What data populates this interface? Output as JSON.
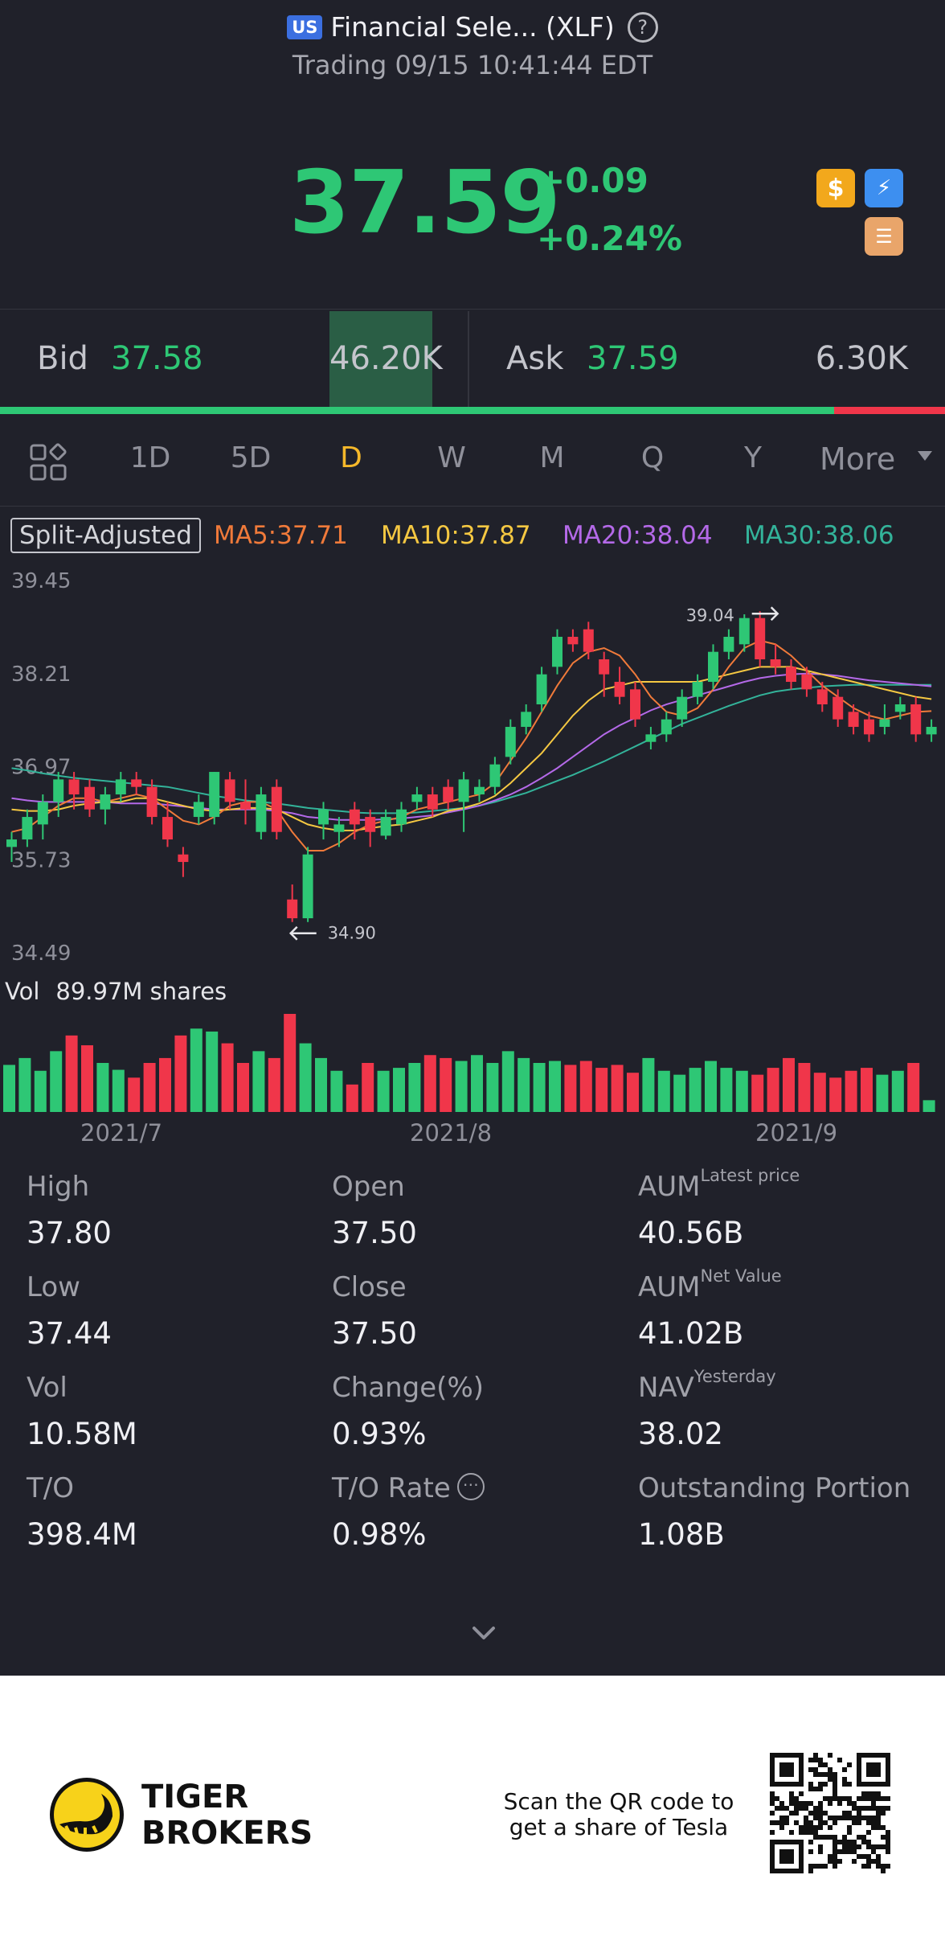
{
  "header": {
    "market_badge": "US",
    "title": "Financial Sele... (XLF)",
    "status": "Trading 09/15 10:41:44 EDT"
  },
  "quote": {
    "price": "37.59",
    "change": "+0.09",
    "change_pct": "+0.24%",
    "color": "#2ec775"
  },
  "bidask": {
    "bid_label": "Bid",
    "bid_price": "37.58",
    "bid_size": "46.20K",
    "ask_label": "Ask",
    "ask_price": "37.59",
    "ask_size": "6.30K",
    "bid_ratio": 0.883
  },
  "tabs": {
    "items": [
      "1D",
      "5D",
      "D",
      "W",
      "M",
      "Q",
      "Y"
    ],
    "active": "D",
    "more_label": "More"
  },
  "legend": {
    "split_label": "Split-Adjusted",
    "ma5": "MA5:37.71",
    "ma10": "MA10:37.87",
    "ma20": "MA20:38.04",
    "ma30": "MA30:38.06",
    "ma5_color": "#f07a3a",
    "ma10_color": "#f5c842",
    "ma20_color": "#b469e8",
    "ma30_color": "#33b39a"
  },
  "chart_data": {
    "type": "candlestick",
    "y_ticks": [
      "39.45",
      "38.21",
      "36.97",
      "35.73",
      "34.49"
    ],
    "ylim": [
      34.49,
      39.45
    ],
    "high_label": "39.04",
    "low_label": "34.90",
    "x_labels": [
      "2021/7",
      "2021/8",
      "2021/9"
    ],
    "up_color": "#2ec775",
    "down_color": "#f0364a",
    "candles": [
      {
        "o": 35.9,
        "h": 36.1,
        "c": 36.0,
        "l": 35.7
      },
      {
        "o": 36.0,
        "h": 36.4,
        "c": 36.3,
        "l": 35.9
      },
      {
        "o": 36.2,
        "h": 36.6,
        "c": 36.5,
        "l": 36.0
      },
      {
        "o": 36.5,
        "h": 36.9,
        "c": 36.8,
        "l": 36.3
      },
      {
        "o": 36.8,
        "h": 36.9,
        "c": 36.6,
        "l": 36.4
      },
      {
        "o": 36.7,
        "h": 36.8,
        "c": 36.4,
        "l": 36.3
      },
      {
        "o": 36.4,
        "h": 36.7,
        "c": 36.6,
        "l": 36.2
      },
      {
        "o": 36.6,
        "h": 36.9,
        "c": 36.8,
        "l": 36.5
      },
      {
        "o": 36.8,
        "h": 36.9,
        "c": 36.7,
        "l": 36.6
      },
      {
        "o": 36.7,
        "h": 36.8,
        "c": 36.3,
        "l": 36.2
      },
      {
        "o": 36.3,
        "h": 36.5,
        "c": 36.0,
        "l": 35.9
      },
      {
        "o": 35.8,
        "h": 35.9,
        "c": 35.7,
        "l": 35.5
      },
      {
        "o": 36.3,
        "h": 36.6,
        "c": 36.5,
        "l": 36.2
      },
      {
        "o": 36.3,
        "h": 36.9,
        "c": 36.9,
        "l": 36.2
      },
      {
        "o": 36.8,
        "h": 36.9,
        "c": 36.5,
        "l": 36.4
      },
      {
        "o": 36.5,
        "h": 36.8,
        "c": 36.4,
        "l": 36.2
      },
      {
        "o": 36.1,
        "h": 36.7,
        "c": 36.6,
        "l": 36.0
      },
      {
        "o": 36.7,
        "h": 36.8,
        "c": 36.1,
        "l": 36.0
      },
      {
        "o": 35.2,
        "h": 35.4,
        "c": 34.95,
        "l": 34.9
      },
      {
        "o": 34.95,
        "h": 35.9,
        "c": 35.8,
        "l": 34.9
      },
      {
        "o": 36.2,
        "h": 36.5,
        "c": 36.4,
        "l": 36.0
      },
      {
        "o": 36.1,
        "h": 36.3,
        "c": 36.2,
        "l": 35.9
      },
      {
        "o": 36.4,
        "h": 36.5,
        "c": 36.2,
        "l": 36.0
      },
      {
        "o": 36.3,
        "h": 36.4,
        "c": 36.1,
        "l": 35.9
      },
      {
        "o": 36.05,
        "h": 36.4,
        "c": 36.3,
        "l": 36.0
      },
      {
        "o": 36.2,
        "h": 36.5,
        "c": 36.4,
        "l": 36.1
      },
      {
        "o": 36.5,
        "h": 36.7,
        "c": 36.6,
        "l": 36.4
      },
      {
        "o": 36.6,
        "h": 36.7,
        "c": 36.4,
        "l": 36.3
      },
      {
        "o": 36.7,
        "h": 36.8,
        "c": 36.5,
        "l": 36.4
      },
      {
        "o": 36.5,
        "h": 36.9,
        "c": 36.8,
        "l": 36.1
      },
      {
        "o": 36.6,
        "h": 36.8,
        "c": 36.7,
        "l": 36.5
      },
      {
        "o": 36.7,
        "h": 37.1,
        "c": 37.0,
        "l": 36.6
      },
      {
        "o": 37.1,
        "h": 37.6,
        "c": 37.5,
        "l": 37.0
      },
      {
        "o": 37.5,
        "h": 37.8,
        "c": 37.7,
        "l": 37.4
      },
      {
        "o": 37.8,
        "h": 38.3,
        "c": 38.2,
        "l": 37.7
      },
      {
        "o": 38.3,
        "h": 38.8,
        "c": 38.7,
        "l": 38.2
      },
      {
        "o": 38.7,
        "h": 38.8,
        "c": 38.6,
        "l": 38.5
      },
      {
        "o": 38.8,
        "h": 38.9,
        "c": 38.5,
        "l": 38.4
      },
      {
        "o": 38.4,
        "h": 38.5,
        "c": 38.2,
        "l": 37.9
      },
      {
        "o": 38.1,
        "h": 38.3,
        "c": 37.9,
        "l": 37.8
      },
      {
        "o": 38.0,
        "h": 38.1,
        "c": 37.6,
        "l": 37.5
      },
      {
        "o": 37.3,
        "h": 37.5,
        "c": 37.4,
        "l": 37.2
      },
      {
        "o": 37.4,
        "h": 37.7,
        "c": 37.6,
        "l": 37.3
      },
      {
        "o": 37.6,
        "h": 38.0,
        "c": 37.9,
        "l": 37.5
      },
      {
        "o": 37.9,
        "h": 38.2,
        "c": 38.1,
        "l": 37.8
      },
      {
        "o": 38.1,
        "h": 38.6,
        "c": 38.5,
        "l": 38.0
      },
      {
        "o": 38.5,
        "h": 38.8,
        "c": 38.7,
        "l": 38.4
      },
      {
        "o": 38.6,
        "h": 39.0,
        "c": 38.95,
        "l": 38.5
      },
      {
        "o": 38.95,
        "h": 39.04,
        "c": 38.4,
        "l": 38.3
      },
      {
        "o": 38.4,
        "h": 38.6,
        "c": 38.3,
        "l": 38.2
      },
      {
        "o": 38.3,
        "h": 38.4,
        "c": 38.1,
        "l": 38.0
      },
      {
        "o": 38.2,
        "h": 38.3,
        "c": 38.0,
        "l": 37.9
      },
      {
        "o": 38.0,
        "h": 38.1,
        "c": 37.8,
        "l": 37.7
      },
      {
        "o": 37.9,
        "h": 38.0,
        "c": 37.6,
        "l": 37.5
      },
      {
        "o": 37.7,
        "h": 37.8,
        "c": 37.5,
        "l": 37.4
      },
      {
        "o": 37.6,
        "h": 37.7,
        "c": 37.4,
        "l": 37.3
      },
      {
        "o": 37.5,
        "h": 37.8,
        "c": 37.6,
        "l": 37.4
      },
      {
        "o": 37.7,
        "h": 37.9,
        "c": 37.8,
        "l": 37.6
      },
      {
        "o": 37.8,
        "h": 37.9,
        "c": 37.4,
        "l": 37.3
      },
      {
        "o": 37.4,
        "h": 37.6,
        "c": 37.5,
        "l": 37.3
      }
    ],
    "ma5": [
      36.1,
      36.15,
      36.3,
      36.45,
      36.55,
      36.55,
      36.5,
      36.55,
      36.6,
      36.55,
      36.4,
      36.25,
      36.2,
      36.3,
      36.45,
      36.5,
      36.5,
      36.4,
      36.1,
      35.85,
      35.85,
      35.95,
      36.1,
      36.2,
      36.25,
      36.3,
      36.4,
      36.45,
      36.5,
      36.55,
      36.6,
      36.75,
      37.05,
      37.35,
      37.7,
      38.05,
      38.35,
      38.5,
      38.55,
      38.45,
      38.2,
      37.9,
      37.7,
      37.65,
      37.75,
      38.0,
      38.3,
      38.55,
      38.65,
      38.6,
      38.45,
      38.25,
      38.05,
      37.9,
      37.75,
      37.65,
      37.6,
      37.65,
      37.7,
      37.71
    ],
    "ma10": [
      36.4,
      36.38,
      36.38,
      36.4,
      36.45,
      36.48,
      36.5,
      36.5,
      36.55,
      36.55,
      36.5,
      36.45,
      36.4,
      36.38,
      36.4,
      36.42,
      36.42,
      36.4,
      36.3,
      36.2,
      36.15,
      36.12,
      36.12,
      36.15,
      36.18,
      36.2,
      36.25,
      36.3,
      36.38,
      36.42,
      36.48,
      36.58,
      36.75,
      36.95,
      37.15,
      37.4,
      37.65,
      37.85,
      38.0,
      38.05,
      38.1,
      38.1,
      38.1,
      38.1,
      38.1,
      38.15,
      38.2,
      38.25,
      38.3,
      38.3,
      38.3,
      38.25,
      38.2,
      38.15,
      38.1,
      38.05,
      38.0,
      37.95,
      37.9,
      37.87
    ],
    "ma20": [
      36.55,
      36.52,
      36.5,
      36.5,
      36.5,
      36.5,
      36.5,
      36.48,
      36.48,
      36.48,
      36.46,
      36.44,
      36.42,
      36.4,
      36.4,
      36.4,
      36.4,
      36.38,
      36.35,
      36.3,
      36.28,
      36.26,
      36.26,
      36.26,
      36.27,
      36.28,
      36.3,
      36.32,
      36.36,
      36.4,
      36.45,
      36.52,
      36.6,
      36.7,
      36.82,
      36.95,
      37.1,
      37.25,
      37.4,
      37.52,
      37.62,
      37.72,
      37.8,
      37.86,
      37.92,
      37.98,
      38.04,
      38.1,
      38.15,
      38.18,
      38.2,
      38.21,
      38.2,
      38.18,
      38.15,
      38.12,
      38.1,
      38.08,
      38.06,
      38.04
    ],
    "ma30": [
      36.95,
      36.92,
      36.88,
      36.85,
      36.82,
      36.8,
      36.78,
      36.76,
      36.74,
      36.72,
      36.7,
      36.66,
      36.62,
      36.58,
      36.55,
      36.52,
      36.5,
      36.48,
      36.45,
      36.42,
      36.4,
      36.38,
      36.36,
      36.35,
      36.35,
      36.35,
      36.36,
      36.38,
      36.4,
      36.42,
      36.45,
      36.5,
      36.56,
      36.62,
      36.7,
      36.78,
      36.86,
      36.95,
      37.04,
      37.14,
      37.24,
      37.34,
      37.44,
      37.54,
      37.62,
      37.7,
      37.78,
      37.85,
      37.92,
      37.97,
      38.0,
      38.02,
      38.04,
      38.05,
      38.06,
      38.06,
      38.06,
      38.06,
      38.06,
      38.06
    ],
    "volume_label": "Vol",
    "volume_value": "89.97M shares",
    "volumes": [
      0.48,
      0.55,
      0.42,
      0.62,
      0.78,
      0.68,
      0.5,
      0.43,
      0.35,
      0.5,
      0.55,
      0.78,
      0.85,
      0.82,
      0.7,
      0.5,
      0.62,
      0.55,
      1.0,
      0.7,
      0.55,
      0.42,
      0.28,
      0.5,
      0.42,
      0.45,
      0.5,
      0.58,
      0.55,
      0.52,
      0.58,
      0.5,
      0.62,
      0.55,
      0.5,
      0.52,
      0.48,
      0.52,
      0.45,
      0.48,
      0.4,
      0.55,
      0.42,
      0.38,
      0.45,
      0.52,
      0.45,
      0.42,
      0.38,
      0.45,
      0.55,
      0.5,
      0.4,
      0.35,
      0.42,
      0.45,
      0.38,
      0.42,
      0.5,
      0.12
    ]
  },
  "stats": {
    "high_label": "High",
    "high": "37.80",
    "open_label": "Open",
    "open": "37.50",
    "aum_label": "AUM",
    "aum_sup": "Latest price",
    "aum": "40.56B",
    "low_label": "Low",
    "low": "37.44",
    "close_label": "Close",
    "close": "37.50",
    "aumnv_label": "AUM",
    "aumnv_sup": "Net Value",
    "aumnv": "41.02B",
    "vol_label": "Vol",
    "vol": "10.58M",
    "chgpct_label": "Change(%)",
    "chgpct": "0.93%",
    "nav_label": "NAV",
    "nav_sup": "Yesterday",
    "nav": "38.02",
    "to_label": "T/O",
    "to": "398.4M",
    "torate_label": "T/O Rate",
    "torate": "0.98%",
    "outstanding_label": "Outstanding Portion",
    "outstanding": "1.08B"
  },
  "footer": {
    "brand_line1": "TIGER",
    "brand_line2": "BROKERS",
    "promo_line1": "Scan the QR code to",
    "promo_line2": "get a share of Tesla"
  }
}
